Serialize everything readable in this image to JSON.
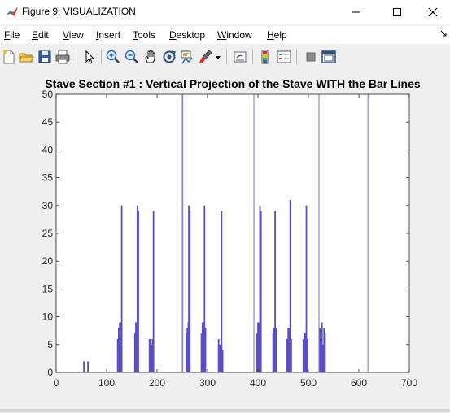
{
  "window": {
    "title": "Figure 9: VISUALIZATION",
    "minimize_icon": "minimize-icon",
    "maximize_icon": "maximize-icon",
    "close_icon": "close-icon"
  },
  "menu": {
    "items": [
      {
        "label": "File",
        "mnemonic": "F",
        "rest": "ile"
      },
      {
        "label": "Edit",
        "mnemonic": "E",
        "rest": "dit"
      },
      {
        "label": "View",
        "mnemonic": "V",
        "rest": "iew"
      },
      {
        "label": "Insert",
        "mnemonic": "I",
        "rest": "nsert"
      },
      {
        "label": "Tools",
        "mnemonic": "T",
        "rest": "ools"
      },
      {
        "label": "Desktop",
        "mnemonic": "D",
        "rest": "esktop"
      },
      {
        "label": "Window",
        "mnemonic": "W",
        "rest": "indow"
      },
      {
        "label": "Help",
        "mnemonic": "H",
        "rest": "elp"
      }
    ]
  },
  "toolbar": {
    "icons": [
      "new-figure-icon",
      "open-file-icon",
      "save-icon",
      "print-icon",
      "edit-plot-icon",
      "zoom-in-icon",
      "zoom-out-icon",
      "pan-icon",
      "rotate-3d-icon",
      "data-cursor-icon",
      "brush-icon",
      "link-plot-icon",
      "insert-colorbar-icon",
      "insert-legend-icon",
      "hide-plot-tools-icon",
      "show-plot-tools-icon"
    ]
  },
  "colors": {
    "bar": "#5b4fc4",
    "bar_light": "#8d86d6",
    "axes_bg": "#ffffff",
    "figure_bg": "#f0f0f0"
  },
  "chart_data": {
    "type": "bar",
    "title": "Stave Section #1 : Vertical Projection of the Stave WITH the Bar Lines",
    "xlabel": "",
    "ylabel": "",
    "xlim": [
      0,
      700
    ],
    "ylim": [
      0,
      50
    ],
    "xticks": [
      0,
      100,
      200,
      300,
      400,
      500,
      600,
      700
    ],
    "yticks": [
      0,
      5,
      10,
      15,
      20,
      25,
      30,
      35,
      40,
      45,
      50
    ],
    "grid": false,
    "x": [
      55,
      63,
      122,
      124,
      126,
      128,
      130,
      156,
      158,
      160,
      161,
      163,
      185,
      187,
      189,
      191,
      193,
      250,
      251,
      258,
      260,
      262,
      263,
      265,
      288,
      290,
      292,
      294,
      296,
      322,
      324,
      326,
      328,
      330,
      392,
      398,
      400,
      402,
      404,
      406,
      430,
      432,
      434,
      436,
      458,
      460,
      462,
      464,
      466,
      490,
      492,
      494,
      496,
      498,
      521,
      523,
      525,
      527,
      529,
      531,
      533,
      618
    ],
    "values": [
      2,
      2,
      6,
      8,
      9,
      9,
      30,
      7,
      9,
      9,
      30,
      29,
      6,
      6,
      5,
      6,
      29,
      50,
      50,
      7,
      8,
      9,
      30,
      29,
      7,
      9,
      9,
      30,
      8,
      6,
      5,
      5,
      29,
      4,
      50,
      7,
      9,
      9,
      30,
      29,
      7,
      8,
      29,
      8,
      6,
      8,
      8,
      31,
      6,
      6,
      7,
      7,
      30,
      6,
      50,
      8,
      6,
      9,
      5,
      8,
      7,
      50
    ]
  }
}
